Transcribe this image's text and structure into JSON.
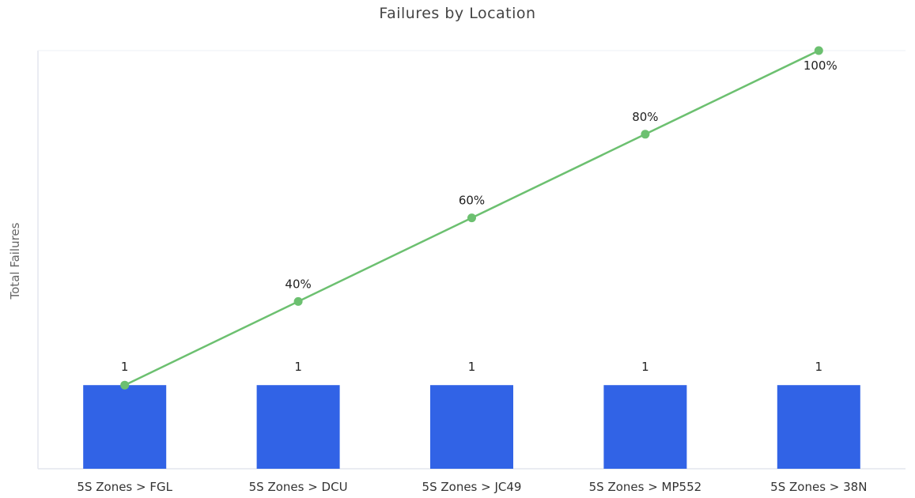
{
  "chart_data": {
    "type": "bar",
    "title": "Failures by Location",
    "ylabel": "Total Failures",
    "xlabel": "",
    "categories": [
      "5S Zones > FGL",
      "5S Zones > DCU",
      "5S Zones > JC49",
      "5S Zones > MP552",
      "5S Zones > 38N"
    ],
    "series": [
      {
        "type": "bar",
        "values": [
          1,
          1,
          1,
          1,
          1
        ],
        "labels": [
          "1",
          "1",
          "1",
          "1",
          "1"
        ],
        "color": "#3163e6"
      },
      {
        "type": "line",
        "values": [
          20,
          40,
          60,
          80,
          100
        ],
        "labels": [
          "",
          "40%",
          "60%",
          "80%",
          "100%"
        ],
        "color": "#6cc070"
      }
    ],
    "ylim": [
      0,
      5
    ],
    "y2lim": [
      0,
      100
    ],
    "grid": false,
    "legend": "none"
  }
}
